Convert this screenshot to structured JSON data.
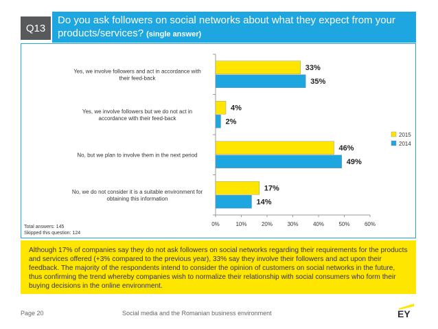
{
  "question": {
    "number": "Q13",
    "title": "Do you ask followers on social networks about what they expect from your products/services?",
    "subtitle": "(single answer)"
  },
  "totals": {
    "answers": "Total answers: 145",
    "skipped": "Skipped this question: 124"
  },
  "note": "Although 17% of companies say they do not ask followers on social networks regarding their requirements for the products and services offered (+3% compared to the previous year), 33% say they involve their followers and act upon their feedback. The majority of the respondents intend to consider the opinion of customers on social networks in the future, thus confirming the trend whereby companies wish to normalize their relationship with social consumers who form their buying decisions in the online environment.",
  "footer": {
    "page": "Page 20",
    "center": "Social media and the Romanian business environment",
    "logo": "EY"
  },
  "colors": {
    "accent": "#1ea6e0",
    "y2015": "#ffe600",
    "y2014": "#1ea6e0",
    "qbox": "#58595b"
  },
  "chart_data": {
    "type": "bar",
    "orientation": "horizontal",
    "categories": [
      [
        "Yes, we involve followers and act in accordance with",
        "their feed-back"
      ],
      [
        "Yes, we involve followers but we do not act in",
        "accordance with their feed-back"
      ],
      [
        "No, but we plan to involve them in the next period"
      ],
      [
        "No, we do not consider it is a suitable environment for",
        "obtaining this information"
      ]
    ],
    "series": [
      {
        "name": "2015",
        "values": [
          33,
          4,
          46,
          17
        ],
        "labels": [
          "33%",
          "4%",
          "46%",
          "17%"
        ],
        "color": "#ffe600"
      },
      {
        "name": "2014",
        "values": [
          35,
          2,
          49,
          14
        ],
        "labels": [
          "35%",
          "2%",
          "49%",
          "14%"
        ],
        "color": "#1ea6e0"
      }
    ],
    "xlim": [
      0,
      60
    ],
    "xticks": [
      0,
      10,
      20,
      30,
      40,
      50,
      60
    ],
    "xtick_labels": [
      "0%",
      "10%",
      "20%",
      "30%",
      "40%",
      "50%",
      "60%"
    ],
    "legend": [
      "2015",
      "2014"
    ],
    "legend_position": "right"
  }
}
